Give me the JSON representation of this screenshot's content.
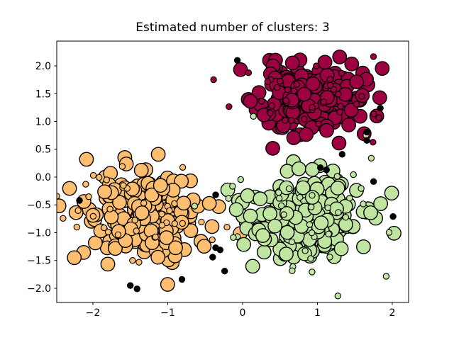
{
  "figure": {
    "background": "#ffffff",
    "spine_color": "#000000"
  },
  "chart_data": {
    "type": "scatter",
    "title": "Estimated number of clusters: 3",
    "xlabel": "",
    "ylabel": "",
    "grid": false,
    "legend": null,
    "xlim": [
      -2.483,
      2.218
    ],
    "ylim": [
      -2.255,
      2.446
    ],
    "x_ticks": {
      "values": [
        -2,
        -1,
        0,
        1,
        2
      ],
      "labels": [
        "−2",
        "−1",
        "0",
        "1",
        "2"
      ]
    },
    "y_ticks": {
      "values": [
        -2.0,
        -1.5,
        -1.0,
        -0.5,
        0.0,
        0.5,
        1.0,
        1.5,
        2.0
      ],
      "labels": [
        "−2.0",
        "−1.5",
        "−1.0",
        "−0.5",
        "0.0",
        "0.5",
        "1.0",
        "1.5",
        "2.0"
      ]
    },
    "marker": {
      "core_radius_px": 9.7,
      "noncore_radius_px": 4.15,
      "edge_color": "#000000"
    },
    "clusters": [
      {
        "name": "cluster-0-crimson",
        "color": "#9e0142",
        "center": [
          0.88,
          1.4
        ],
        "std": [
          0.34,
          0.31
        ],
        "core_count": 205,
        "noncore_count": 40,
        "noncore_std_scale": 1.5,
        "seed": 11
      },
      {
        "name": "cluster-1-orange",
        "color": "#fdbf6f",
        "center": [
          -1.35,
          -0.66
        ],
        "std": [
          0.42,
          0.38
        ],
        "core_count": 205,
        "noncore_count": 40,
        "noncore_std_scale": 1.5,
        "seed": 22
      },
      {
        "name": "cluster-2-green",
        "color": "#bfe5a0",
        "center": [
          0.85,
          -0.72
        ],
        "std": [
          0.41,
          0.38
        ],
        "core_count": 205,
        "noncore_count": 40,
        "noncore_std_scale": 1.5,
        "seed": 33
      }
    ],
    "noise": {
      "name": "noise-points",
      "color": "#000000",
      "points": [
        [
          -0.07,
          2.1
        ],
        [
          1.84,
          1.24
        ],
        [
          1.66,
          0.81
        ],
        [
          1.66,
          0.66
        ],
        [
          1.33,
          0.41
        ],
        [
          1.04,
          0.17
        ],
        [
          1.12,
          0.13
        ],
        [
          1.75,
          -0.08
        ],
        [
          2.01,
          -0.71
        ],
        [
          -2.18,
          -0.42
        ],
        [
          -0.36,
          -0.32
        ],
        [
          -0.36,
          -1.27
        ],
        [
          -0.3,
          -1.31
        ],
        [
          -0.4,
          -1.44
        ],
        [
          -0.24,
          -1.69
        ],
        [
          -0.81,
          -1.84
        ],
        [
          -1.5,
          -1.95
        ],
        [
          -1.41,
          -2.01
        ]
      ]
    }
  }
}
